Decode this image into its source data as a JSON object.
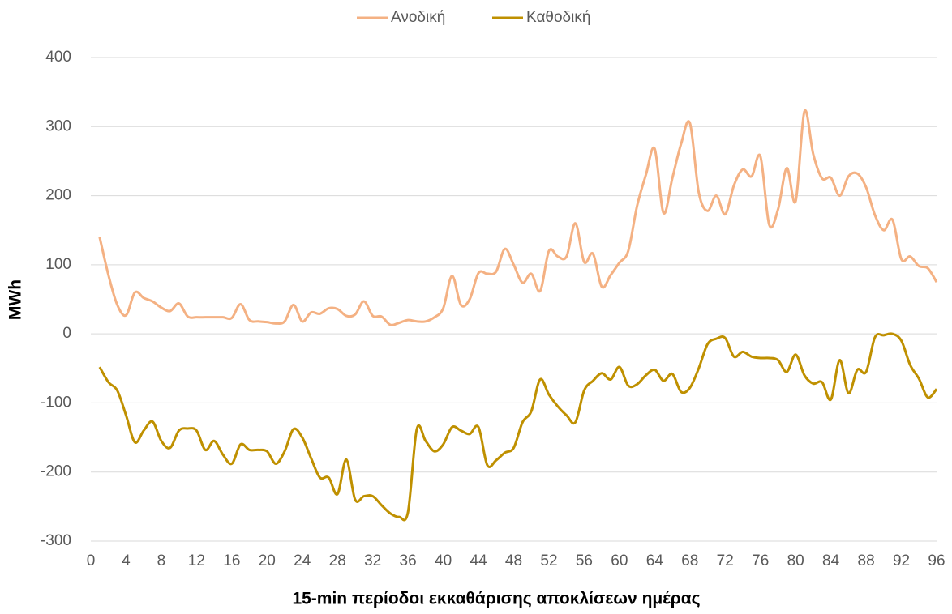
{
  "chart_data": {
    "type": "line",
    "xlabel": "15-min περίοδοι εκκαθάρισης αποκλίσεων ημέρας",
    "ylabel": "MWh",
    "x": [
      1,
      2,
      3,
      4,
      5,
      6,
      7,
      8,
      9,
      10,
      11,
      12,
      13,
      14,
      15,
      16,
      17,
      18,
      19,
      20,
      21,
      22,
      23,
      24,
      25,
      26,
      27,
      28,
      29,
      30,
      31,
      32,
      33,
      34,
      35,
      36,
      37,
      38,
      39,
      40,
      41,
      42,
      43,
      44,
      45,
      46,
      47,
      48,
      49,
      50,
      51,
      52,
      53,
      54,
      55,
      56,
      57,
      58,
      59,
      60,
      61,
      62,
      63,
      64,
      65,
      66,
      67,
      68,
      69,
      70,
      71,
      72,
      73,
      74,
      75,
      76,
      77,
      78,
      79,
      80,
      81,
      82,
      83,
      84,
      85,
      86,
      87,
      88,
      89,
      90,
      91,
      92,
      93,
      94,
      95,
      96
    ],
    "series": [
      {
        "name": "Ανοδική",
        "color": "#f4b183",
        "values": [
          140,
          85,
          42,
          27,
          60,
          52,
          47,
          38,
          33,
          44,
          25,
          24,
          24,
          24,
          24,
          23,
          43,
          20,
          18,
          17,
          15,
          18,
          42,
          18,
          31,
          29,
          37,
          36,
          26,
          28,
          47,
          26,
          25,
          13,
          16,
          20,
          18,
          18,
          24,
          37,
          84,
          42,
          50,
          88,
          87,
          90,
          123,
          100,
          74,
          87,
          62,
          120,
          112,
          112,
          160,
          104,
          116,
          68,
          85,
          103,
          120,
          185,
          230,
          268,
          175,
          225,
          275,
          305,
          205,
          178,
          200,
          173,
          215,
          238,
          228,
          257,
          158,
          180,
          240,
          192,
          322,
          260,
          225,
          226,
          200,
          228,
          232,
          212,
          172,
          150,
          165,
          108,
          112,
          98,
          95,
          75
        ]
      },
      {
        "name": "Καθοδική",
        "color": "#bf9000",
        "values": [
          -48,
          -70,
          -82,
          -118,
          -157,
          -140,
          -127,
          -155,
          -165,
          -140,
          -137,
          -140,
          -168,
          -155,
          -175,
          -188,
          -160,
          -168,
          -168,
          -170,
          -188,
          -170,
          -138,
          -150,
          -180,
          -208,
          -208,
          -232,
          -182,
          -240,
          -235,
          -235,
          -248,
          -260,
          -265,
          -258,
          -138,
          -155,
          -170,
          -160,
          -135,
          -140,
          -145,
          -135,
          -190,
          -183,
          -172,
          -165,
          -128,
          -112,
          -66,
          -88,
          -105,
          -118,
          -128,
          -82,
          -68,
          -57,
          -66,
          -48,
          -75,
          -73,
          -60,
          -52,
          -68,
          -58,
          -84,
          -78,
          -50,
          -15,
          -7,
          -6,
          -33,
          -26,
          -33,
          -35,
          -35,
          -38,
          -55,
          -30,
          -60,
          -72,
          -70,
          -95,
          -38,
          -86,
          -52,
          -55,
          -5,
          -2,
          0,
          -10,
          -45,
          -65,
          -92,
          -80
        ]
      }
    ],
    "xlim": [
      0,
      96
    ],
    "xticks": [
      0,
      4,
      8,
      12,
      16,
      20,
      24,
      28,
      32,
      36,
      40,
      44,
      48,
      52,
      56,
      60,
      64,
      68,
      72,
      76,
      80,
      84,
      88,
      92,
      96
    ],
    "ylim": [
      -300,
      400
    ],
    "yticks": [
      -300,
      -200,
      -100,
      0,
      100,
      200,
      300,
      400
    ],
    "grid": true,
    "legend": "top"
  }
}
